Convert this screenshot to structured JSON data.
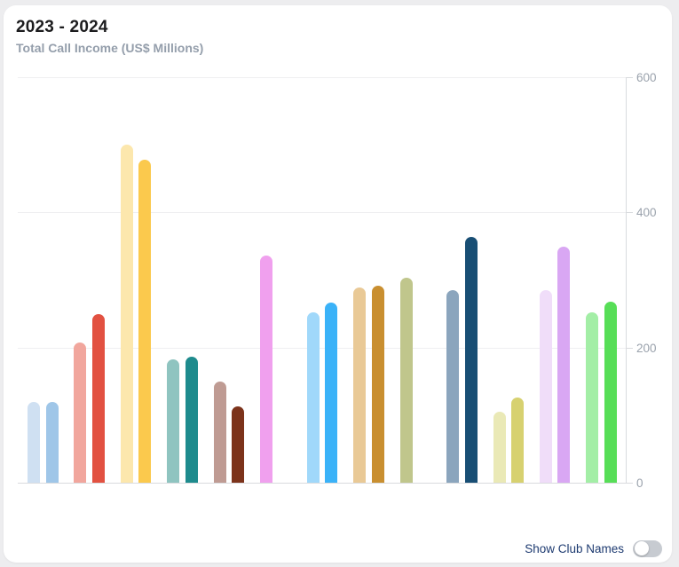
{
  "header": {
    "title": "2023 - 2024",
    "subtitle": "Total Call Income (US$ Millions)"
  },
  "footer": {
    "toggle_label": "Show Club Names",
    "toggle_state": "off"
  },
  "colors": {
    "card_background": "#ffffff",
    "page_background": "#ededef",
    "title_text": "#1c1c1e",
    "subtitle_text": "#949eab",
    "axis_text": "#9aa2ac",
    "gridline": "#efeff1",
    "axis_line": "#d9dbde",
    "toggle_label_text": "#1d3a70",
    "toggle_track": "#c7cbd1"
  },
  "chart_data": {
    "type": "bar",
    "title": "2023 - 2024",
    "subtitle": "Total Call Income (US$ Millions)",
    "xlabel": "",
    "ylabel": "US$ Millions",
    "ylim": [
      0,
      600
    ],
    "yticks": [
      0,
      200,
      400,
      600
    ],
    "axis_side": "right",
    "grid": true,
    "legend": "none",
    "category_labels_visible": false,
    "groups": [
      {
        "bars": [
          {
            "value": 120,
            "color": "#cfe0f2"
          },
          {
            "value": 120,
            "color": "#9fc6e8"
          }
        ]
      },
      {
        "bars": [
          {
            "value": 207,
            "color": "#f1a69d"
          },
          {
            "value": 250,
            "color": "#e25141"
          }
        ]
      },
      {
        "bars": [
          {
            "value": 500,
            "color": "#fce7ad"
          },
          {
            "value": 478,
            "color": "#fbc94d"
          }
        ]
      },
      {
        "bars": [
          {
            "value": 183,
            "color": "#8fc4c0"
          },
          {
            "value": 187,
            "color": "#1e8b8d"
          }
        ]
      },
      {
        "bars": [
          {
            "value": 150,
            "color": "#bf9b93"
          },
          {
            "value": 113,
            "color": "#7c331b"
          }
        ]
      },
      {
        "bars": [
          {
            "value": 336,
            "color": "#f0a0ee"
          }
        ]
      },
      {
        "bars": [
          {
            "value": 252,
            "color": "#a0d8fa"
          },
          {
            "value": 266,
            "color": "#3ab2f8"
          }
        ]
      },
      {
        "bars": [
          {
            "value": 289,
            "color": "#e9c996"
          },
          {
            "value": 291,
            "color": "#c98f30"
          }
        ]
      },
      {
        "bars": [
          {
            "value": 303,
            "color": "#c0c68c"
          }
        ]
      },
      {
        "bars": [
          {
            "value": 285,
            "color": "#8ba5bd"
          },
          {
            "value": 364,
            "color": "#184e74"
          }
        ]
      },
      {
        "bars": [
          {
            "value": 105,
            "color": "#eae9b6"
          },
          {
            "value": 126,
            "color": "#d7d170"
          }
        ]
      },
      {
        "bars": [
          {
            "value": 285,
            "color": "#f0ddf9"
          },
          {
            "value": 349,
            "color": "#d9a7f3"
          }
        ]
      },
      {
        "bars": [
          {
            "value": 252,
            "color": "#a3eea6"
          },
          {
            "value": 268,
            "color": "#57de57"
          }
        ]
      }
    ]
  }
}
